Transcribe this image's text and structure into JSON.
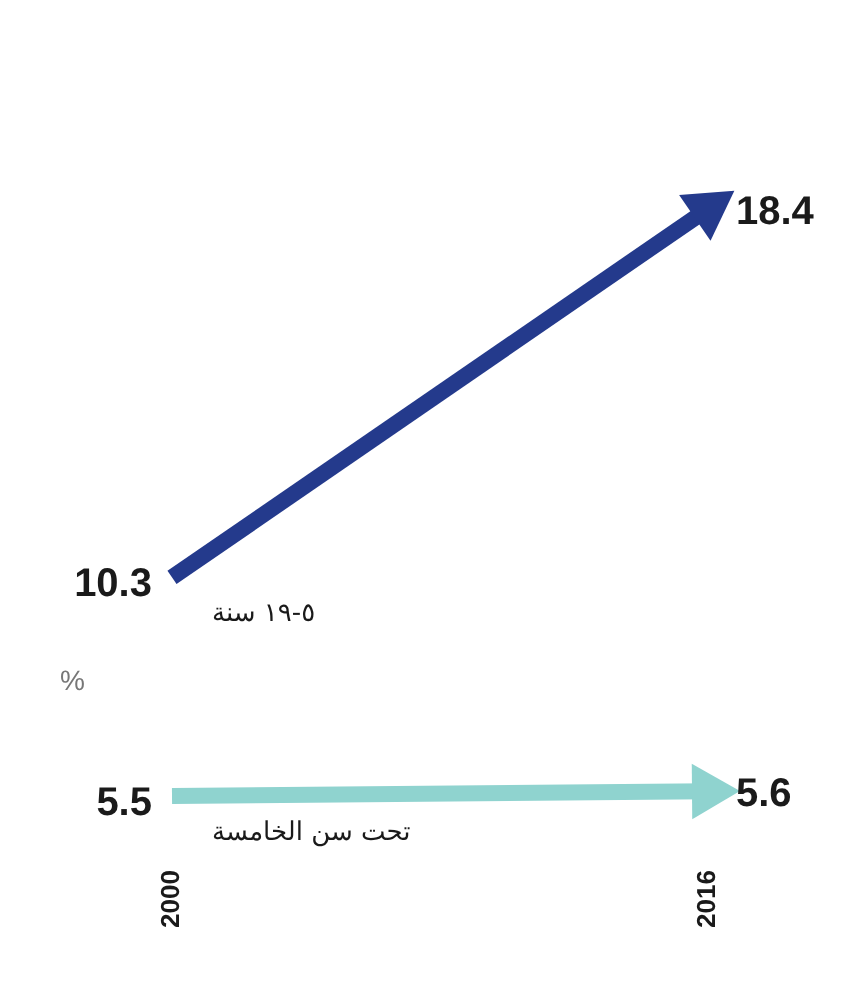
{
  "chart_data": {
    "type": "line",
    "ylabel": "%",
    "categories": [
      "2000",
      "2016"
    ],
    "relative": false,
    "series": [
      {
        "name": "٥-١٩ سنة",
        "color": "#243a8c",
        "values": [
          10.3,
          18.4
        ]
      },
      {
        "name": "تحت سن الخامسة",
        "color": "#8fd3cf",
        "values": [
          5.5,
          5.6
        ]
      }
    ],
    "data_labels": true,
    "legend": false,
    "grid": false,
    "marker": "triangle",
    "line_style": "solid"
  }
}
